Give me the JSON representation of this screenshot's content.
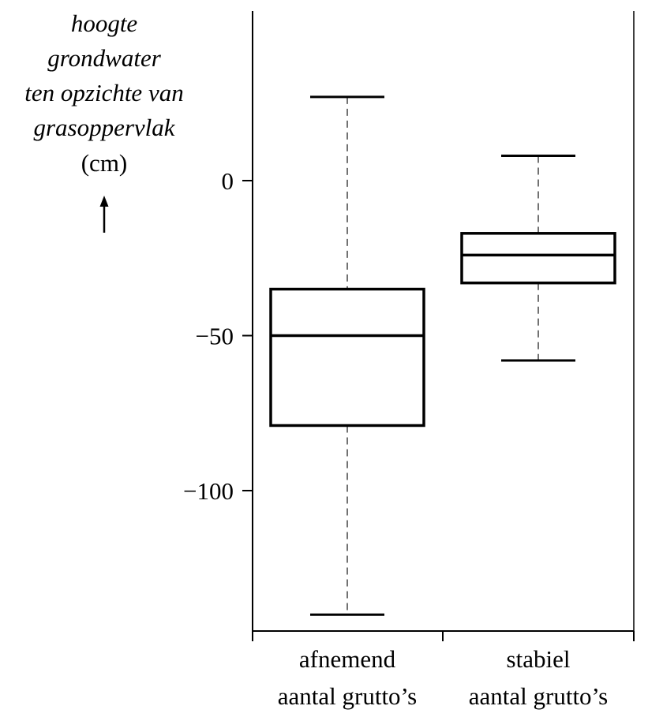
{
  "chart_data": {
    "type": "boxplot",
    "ylabel": {
      "lines": [
        "hoogte",
        "grondwater",
        "ten opzichte van",
        "grasoppervlak"
      ],
      "unit": "(cm)"
    },
    "ylim": [
      -143,
      57
    ],
    "yticks": [
      {
        "value": 0,
        "label": "0"
      },
      {
        "value": -50,
        "label": "−50"
      },
      {
        "value": -100,
        "label": "−100"
      }
    ],
    "categories": [
      {
        "line1": "afnemend",
        "line2": "aantal grutto’s"
      },
      {
        "line1": "stabiel",
        "line2": "aantal grutto’s"
      }
    ],
    "boxes": [
      {
        "whisker_low": -140,
        "q1": -79,
        "median": -50,
        "q3": -35,
        "whisker_high": 27
      },
      {
        "whisker_low": -58,
        "q1": -33,
        "median": -24,
        "q3": -17,
        "whisker_high": 8
      }
    ],
    "grid": false,
    "legend": "none"
  }
}
